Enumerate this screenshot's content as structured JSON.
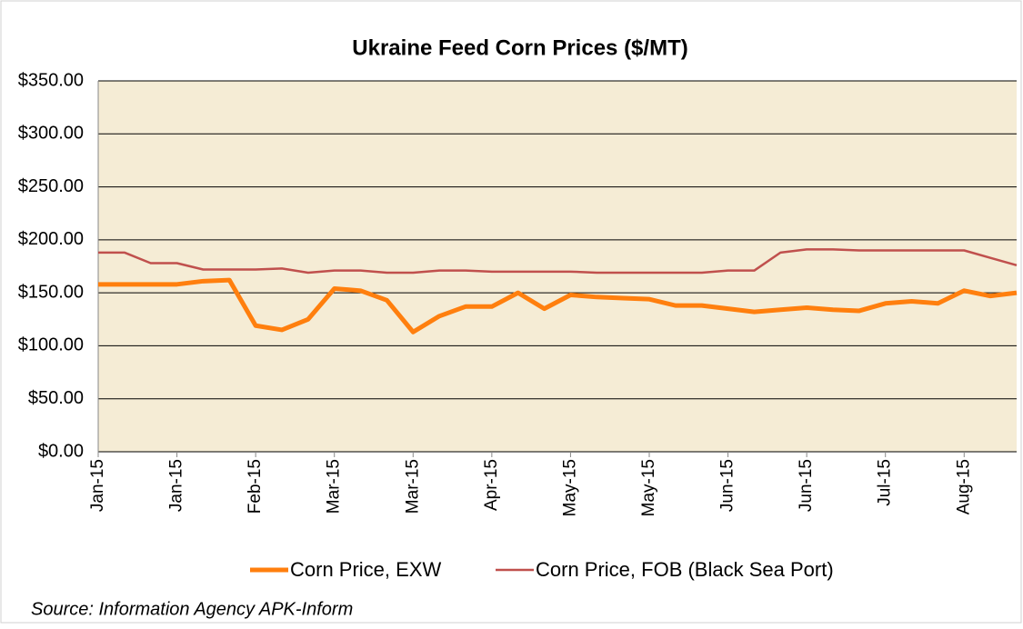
{
  "chart_data": {
    "type": "line",
    "title": "Ukraine  Feed  Corn  Prices  ($/MT)",
    "source": "Source:  Information  Agency  APK-Inform",
    "categories": [
      "Jan-15",
      null,
      null,
      "Jan-15",
      null,
      null,
      "Feb-15",
      null,
      null,
      "Mar-15",
      null,
      null,
      "Mar-15",
      null,
      null,
      "Apr-15",
      null,
      null,
      "May-15",
      null,
      null,
      "May-15",
      null,
      null,
      "Jun-15",
      null,
      null,
      "Jun-15",
      null,
      null,
      "Jul-15",
      null,
      null,
      "Aug-15",
      null,
      null
    ],
    "series": [
      {
        "name": "Corn Price, EXW",
        "color": "#ff7f0e",
        "width": 5,
        "values": [
          158,
          158,
          158,
          158,
          161,
          162,
          119,
          115,
          125,
          154,
          152,
          143,
          113,
          128,
          137,
          137,
          150,
          135,
          148,
          146,
          145,
          144,
          138,
          138,
          135,
          132,
          134,
          136,
          134,
          133,
          140,
          142,
          140,
          152,
          147,
          150
        ]
      },
      {
        "name": "Corn Price, FOB (Black Sea Port)",
        "color": "#c0504d",
        "width": 2.5,
        "values": [
          188,
          188,
          178,
          178,
          172,
          172,
          172,
          173,
          169,
          171,
          171,
          169,
          169,
          171,
          171,
          170,
          170,
          170,
          170,
          169,
          169,
          169,
          169,
          169,
          171,
          171,
          188,
          191,
          191,
          190,
          190,
          190,
          190,
          190,
          183,
          176
        ]
      }
    ],
    "ylim": [
      0,
      350
    ],
    "yticks": [
      {
        "value": 0,
        "label": "$0.00"
      },
      {
        "value": 50,
        "label": "$50.00"
      },
      {
        "value": 100,
        "label": "$100.00"
      },
      {
        "value": 150,
        "label": "$150.00"
      },
      {
        "value": 200,
        "label": "$200.00"
      },
      {
        "value": 250,
        "label": "$250.00"
      },
      {
        "value": 300,
        "label": "$300.00"
      },
      {
        "value": 350,
        "label": "$350.00"
      }
    ],
    "grid": true,
    "legend": "bottom"
  }
}
